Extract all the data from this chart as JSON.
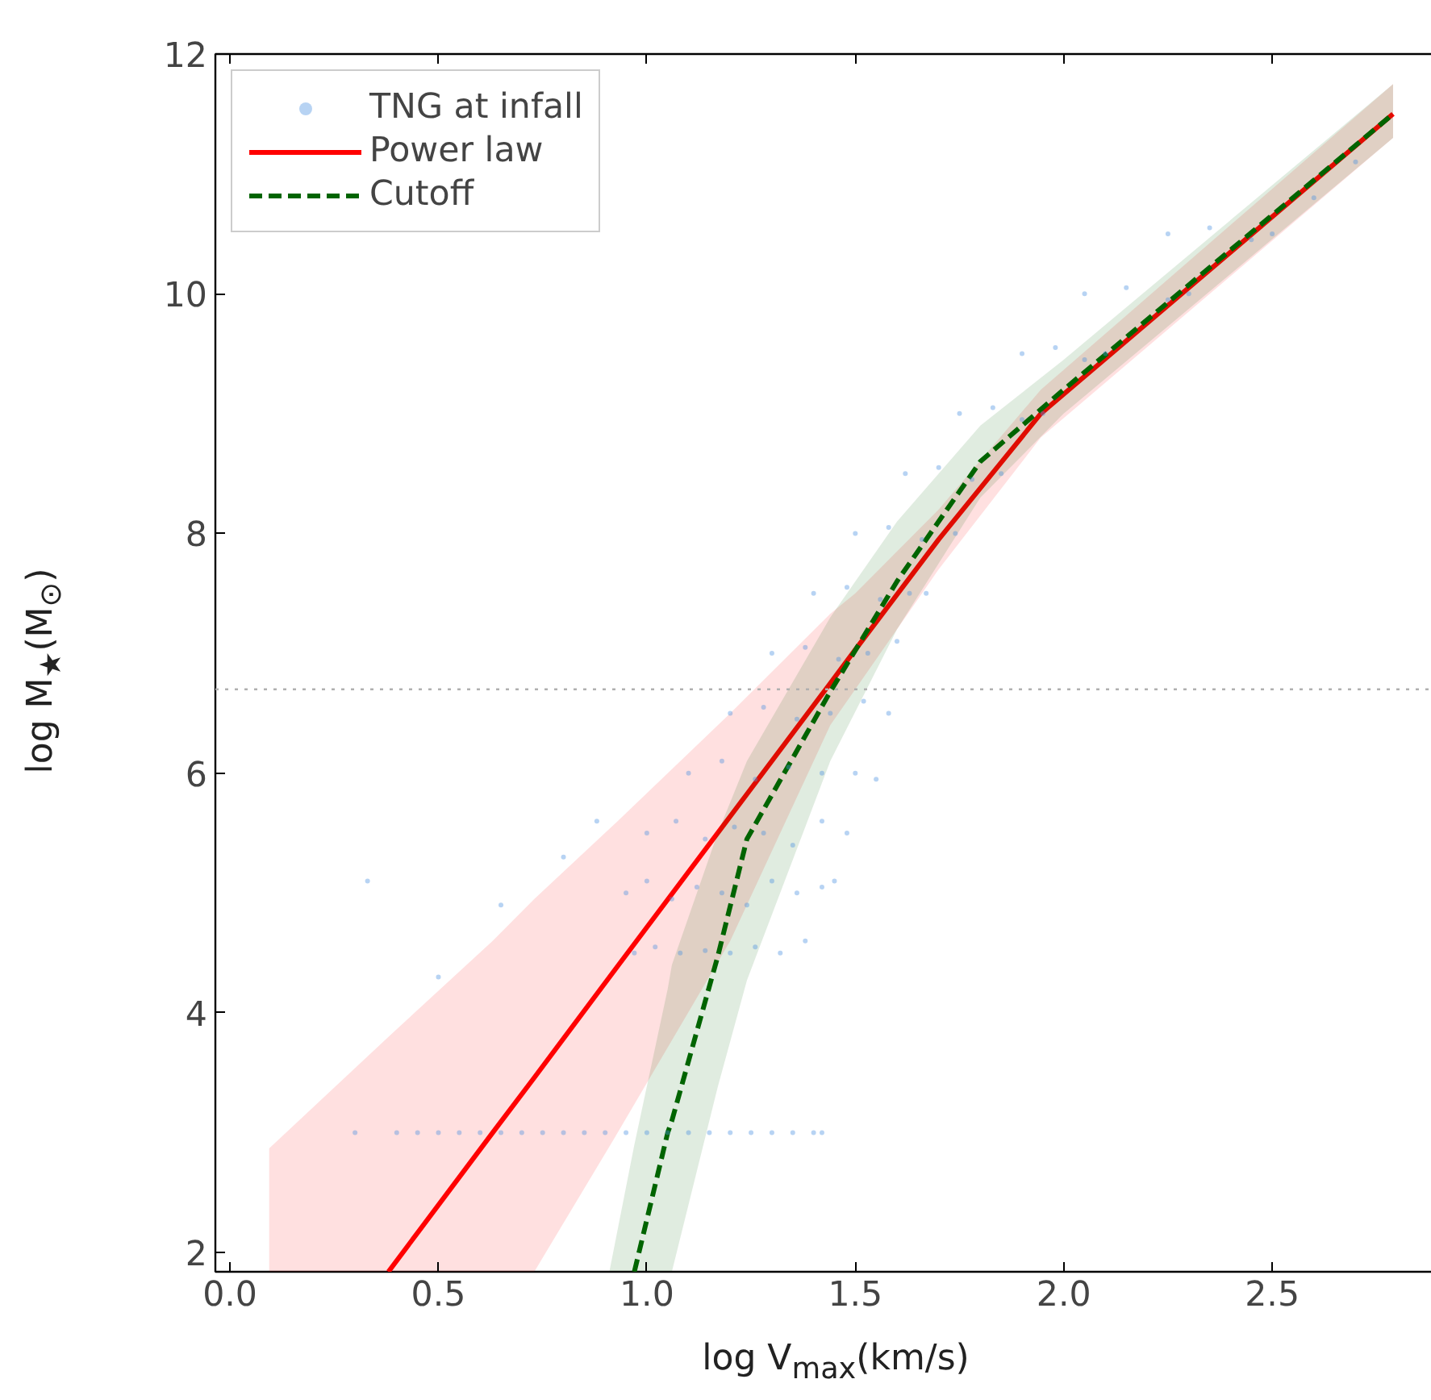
{
  "chart_data": {
    "type": "line",
    "xlabel": "log V$_{max}$(km/s)",
    "ylabel": "log M$_{★}$(M$_{⊙}$)",
    "xlim": [
      -0.035,
      2.91
    ],
    "ylim": [
      1.84,
      12
    ],
    "xticks": [
      {
        "value": 0,
        "label": "0.0"
      },
      0.5,
      {
        "value": 1,
        "label": "1.0"
      },
      1.5,
      {
        "value": 2,
        "label": "2.0"
      },
      2.5
    ],
    "yticks": [
      2,
      4,
      6,
      8,
      10,
      12
    ],
    "grid": false,
    "legend": "top left",
    "ref_lines": [
      {
        "axis": "y",
        "value": 6.7,
        "color": "#b0b0b0",
        "line_style": "dotted"
      }
    ],
    "series": [
      {
        "name": "TNG at infall",
        "type": "scatter",
        "marker": "circle",
        "color": "#4a90e2",
        "x": [
          0.3,
          0.4,
          0.45,
          0.5,
          0.55,
          0.6,
          0.65,
          0.7,
          0.75,
          0.8,
          0.85,
          0.9,
          0.95,
          1.0,
          1.05,
          1.1,
          1.15,
          1.2,
          1.25,
          1.3,
          1.35,
          1.4,
          1.42,
          0.33,
          0.5,
          0.65,
          0.8,
          0.88,
          0.97,
          1.02,
          1.08,
          1.14,
          1.2,
          1.26,
          1.32,
          1.38,
          0.95,
          1.0,
          1.06,
          1.12,
          1.18,
          1.24,
          1.3,
          1.36,
          1.42,
          1.45,
          1.0,
          1.07,
          1.14,
          1.21,
          1.28,
          1.35,
          1.42,
          1.48,
          1.1,
          1.18,
          1.26,
          1.34,
          1.42,
          1.5,
          1.55,
          1.2,
          1.28,
          1.36,
          1.44,
          1.52,
          1.58,
          1.3,
          1.38,
          1.46,
          1.53,
          1.6,
          1.4,
          1.48,
          1.56,
          1.63,
          1.67,
          1.5,
          1.58,
          1.66,
          1.74,
          1.62,
          1.7,
          1.78,
          1.85,
          1.75,
          1.83,
          1.9,
          1.95,
          1.9,
          1.98,
          2.05,
          2.1,
          2.05,
          2.15,
          2.25,
          2.3,
          2.25,
          2.35,
          2.45,
          2.5,
          2.6,
          2.7
        ],
        "values": [
          3.0,
          3.0,
          3.0,
          3.0,
          3.0,
          3.0,
          3.0,
          3.0,
          3.0,
          3.0,
          3.0,
          3.0,
          3.0,
          3.0,
          3.0,
          3.0,
          3.0,
          3.0,
          3.0,
          3.0,
          3.0,
          3.0,
          3.0,
          5.1,
          4.3,
          4.9,
          5.3,
          5.6,
          4.5,
          4.55,
          4.5,
          4.52,
          4.5,
          4.55,
          4.5,
          4.6,
          5.0,
          5.1,
          4.95,
          5.05,
          5.0,
          4.9,
          5.1,
          5.0,
          5.05,
          5.1,
          5.5,
          5.6,
          5.45,
          5.55,
          5.5,
          5.4,
          5.6,
          5.5,
          6.0,
          6.1,
          5.95,
          6.05,
          6.0,
          6.0,
          5.95,
          6.5,
          6.55,
          6.45,
          6.5,
          6.6,
          6.5,
          7.0,
          7.05,
          6.95,
          7.0,
          7.1,
          7.5,
          7.55,
          7.45,
          7.5,
          7.5,
          8.0,
          8.05,
          7.95,
          8.0,
          8.5,
          8.55,
          8.45,
          8.5,
          9.0,
          9.05,
          8.95,
          9.0,
          9.5,
          9.55,
          9.45,
          9.5,
          10.0,
          10.05,
          9.95,
          10.0,
          10.5,
          10.55,
          10.45,
          10.5,
          10.8,
          11.1
        ]
      },
      {
        "name": "Power law",
        "type": "line",
        "line_style": "solid",
        "color": "#ff0000",
        "x": [
          0.094,
          0.38,
          0.63,
          0.73,
          0.93,
          1.2,
          1.44,
          1.5,
          1.7,
          1.945,
          2.79
        ],
        "values": [
          null,
          1.84,
          3.0,
          3.46,
          4.39,
          5.64,
          6.75,
          7.03,
          7.95,
          9.0,
          11.5
        ],
        "lower": [
          1.84,
          1.84,
          1.84,
          1.84,
          3.0,
          4.6,
          6.4,
          6.7,
          7.7,
          8.8,
          11.3
        ],
        "upper": [
          2.87,
          3.8,
          4.6,
          4.95,
          5.6,
          6.5,
          7.33,
          7.5,
          8.2,
          9.2,
          11.75
        ]
      },
      {
        "name": "Cutoff",
        "type": "line",
        "line_style": "dashed",
        "color": "#006400",
        "x": [
          0.91,
          0.97,
          1.05,
          1.06,
          1.17,
          1.24,
          1.44,
          1.6,
          1.8,
          2.0,
          2.79
        ],
        "values": [
          null,
          1.84,
          3.0,
          3.1,
          4.47,
          5.45,
          6.68,
          7.6,
          8.6,
          9.2,
          11.5
        ],
        "lower": [
          1.84,
          1.84,
          1.84,
          1.84,
          3.38,
          4.27,
          6.1,
          7.2,
          8.3,
          9.0,
          11.3
        ],
        "upper": [
          1.84,
          2.9,
          4.2,
          4.4,
          5.5,
          6.1,
          7.3,
          8.1,
          8.9,
          9.45,
          11.75
        ]
      }
    ]
  }
}
